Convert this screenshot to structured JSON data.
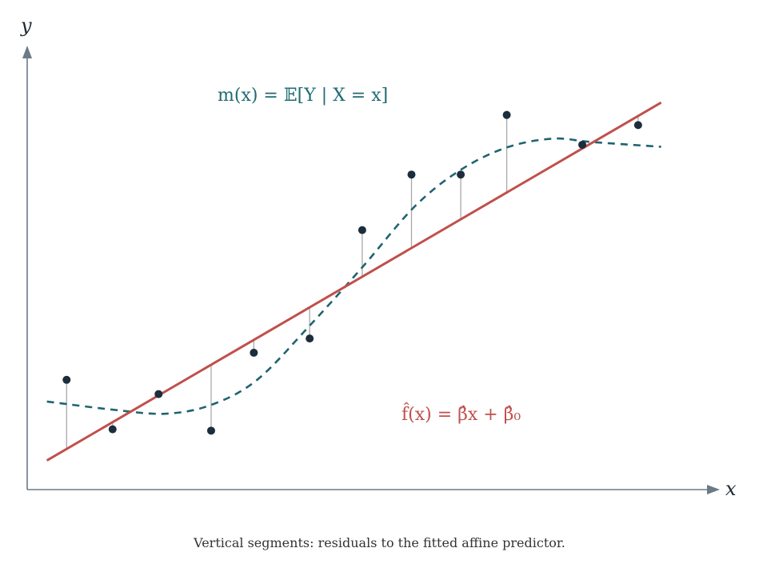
{
  "axes": {
    "x_label": "x",
    "y_label": "y"
  },
  "labels": {
    "true_function": "m(x) = 𝔼[Y | X = x]",
    "fitted_function": "f̂(x) = β̂x + β̂₀"
  },
  "caption": "Vertical segments: residuals to the fitted affine predictor.",
  "colors": {
    "fit_line": "#c0504d",
    "true_curve": "#1f6470",
    "points": "#1c2d3c",
    "residuals": "#a9a9a9",
    "axes": "#6b7a85"
  },
  "chart_data": {
    "type": "scatter",
    "fit": {
      "slope": 0.565,
      "intercept": 0.43
    },
    "true_curve": {
      "form": "sigmoid",
      "base": 2.23,
      "amplitude": 3.52,
      "center": 4.9,
      "scale": 1.43,
      "wiggle": 0.41,
      "wiggle_period": 3.72
    },
    "xlim": [
      -0.3,
      10
    ],
    "ylim": [
      0,
      6.4
    ],
    "points": [
      {
        "x": 0.3,
        "y": 1.62
      },
      {
        "x": 1.0,
        "y": 0.89
      },
      {
        "x": 1.7,
        "y": 1.41
      },
      {
        "x": 2.5,
        "y": 0.87
      },
      {
        "x": 3.15,
        "y": 2.02
      },
      {
        "x": 4.0,
        "y": 2.23
      },
      {
        "x": 4.8,
        "y": 3.83
      },
      {
        "x": 5.55,
        "y": 4.65
      },
      {
        "x": 6.3,
        "y": 4.65
      },
      {
        "x": 7.0,
        "y": 5.53
      },
      {
        "x": 8.15,
        "y": 5.09
      },
      {
        "x": 9.0,
        "y": 5.38
      }
    ]
  }
}
